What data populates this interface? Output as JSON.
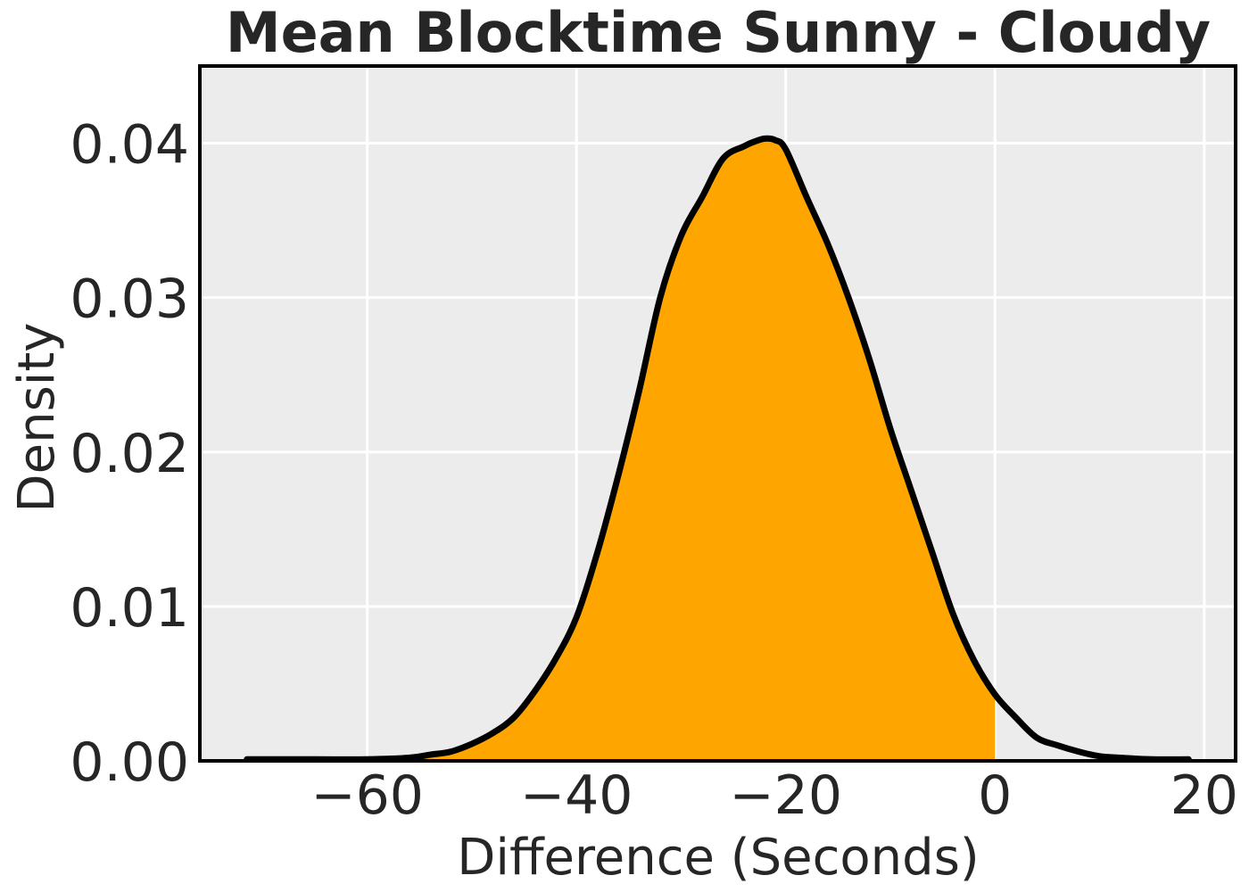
{
  "chart_data": {
    "type": "area",
    "title": "Mean Blocktime Sunny - Cloudy",
    "xlabel": "Difference (Seconds)",
    "ylabel": "Density",
    "xlim": [
      -76,
      23
    ],
    "ylim": [
      0,
      0.045
    ],
    "x_ticks": [
      -60,
      -40,
      -20,
      0,
      20
    ],
    "x_tick_labels": [
      "−60",
      "−40",
      "−20",
      "0",
      "20"
    ],
    "y_ticks": [
      0.0,
      0.01,
      0.02,
      0.03,
      0.04
    ],
    "y_tick_labels": [
      "0.00",
      "0.01",
      "0.02",
      "0.03",
      "0.04"
    ],
    "grid": true,
    "fill_below": 0,
    "colors": {
      "plot_background": "#ececec",
      "grid": "#ffffff",
      "fill": "#ffa500",
      "line": "#000000",
      "text": "#262626"
    },
    "series": [
      {
        "x": [
          -71.5,
          -65,
          -60,
          -56,
          -54,
          -52,
          -50,
          -48,
          -46,
          -44,
          -42,
          -40,
          -38,
          -36,
          -34,
          -32,
          -30,
          -28,
          -26,
          -24,
          -23,
          -22,
          -21,
          -20,
          -18,
          -16,
          -14,
          -12,
          -10,
          -8,
          -6,
          -4,
          -2,
          0,
          2,
          4,
          6,
          8,
          10,
          12,
          15,
          18.5
        ],
        "y": [
          0.0001,
          0.0001,
          0.0001,
          0.0002,
          0.0004,
          0.0006,
          0.0011,
          0.0018,
          0.0028,
          0.0045,
          0.0066,
          0.0093,
          0.0135,
          0.0185,
          0.024,
          0.03,
          0.034,
          0.0365,
          0.039,
          0.0398,
          0.0401,
          0.0403,
          0.0402,
          0.0396,
          0.0365,
          0.0335,
          0.03,
          0.026,
          0.0215,
          0.0175,
          0.0135,
          0.0095,
          0.0065,
          0.0043,
          0.0028,
          0.0015,
          0.001,
          0.0006,
          0.0003,
          0.0002,
          0.0001,
          0.0001
        ]
      }
    ]
  }
}
